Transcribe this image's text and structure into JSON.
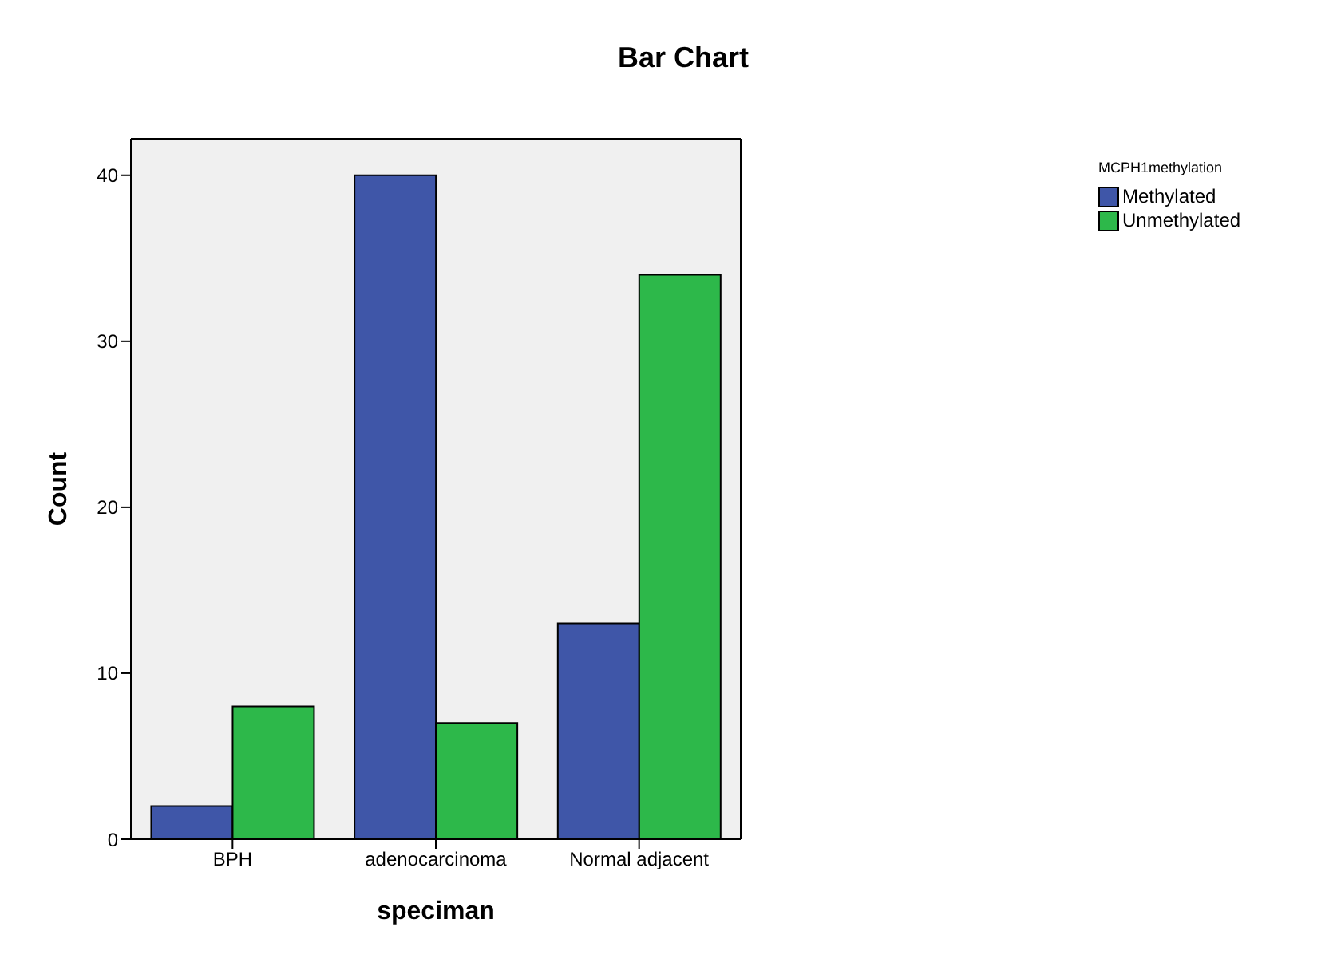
{
  "chart_data": {
    "type": "bar",
    "title": "Bar Chart",
    "xlabel": "speciman",
    "ylabel": "Count",
    "legend_title": "MCPH1methylation",
    "categories": [
      "BPH",
      "adenocarcinoma",
      "Normal adjacent"
    ],
    "series": [
      {
        "name": "Methylated",
        "color": "#3f56a8",
        "values": [
          2,
          40,
          13
        ]
      },
      {
        "name": "Unmethylated",
        "color": "#2db84a",
        "values": [
          8,
          7,
          34
        ]
      }
    ],
    "ylim": [
      0,
      42.2
    ],
    "yticks": [
      0,
      10,
      20,
      30,
      40
    ],
    "legend": "top right"
  }
}
